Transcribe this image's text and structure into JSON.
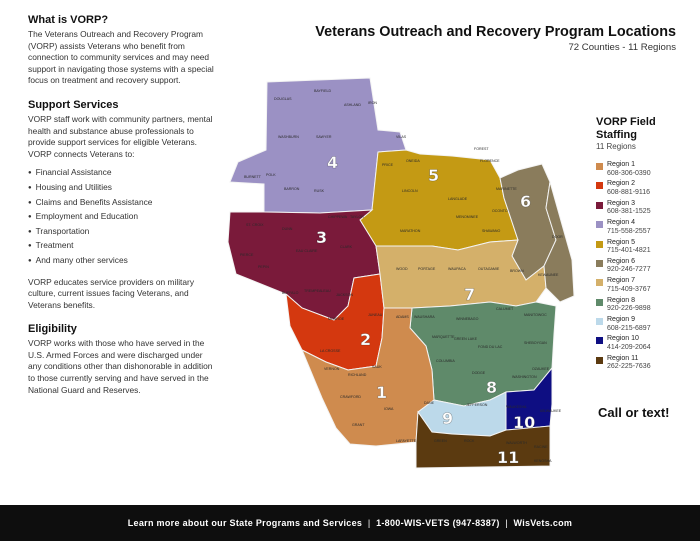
{
  "about": {
    "title": "What is VORP?",
    "text": "The Veterans Outreach and Recovery Program (VORP) assists Veterans who benefit from connection to community services and may need support in navigating those systems with a special focus on treatment and recovery support."
  },
  "support": {
    "title": "Support Services",
    "text": "VORP staff work with community partners, mental health and substance abuse professionals to provide support services for eligible Veterans. VORP connects Veterans to:",
    "items": [
      "Financial Assistance",
      "Housing and Utilities",
      "Claims and Benefits Assistance",
      "Employment and Education",
      "Transportation",
      "Treatment",
      "And many other services"
    ],
    "closing": "VORP educates service providers on military culture, current issues facing Veterans, and Veterans benefits."
  },
  "eligibility": {
    "title": "Eligibility",
    "text": "VORP works with those who have served in the U.S. Armed Forces and were discharged under any conditions other than dishonorable in addition to those currently serving and have served in the National Guard and Reserves."
  },
  "map": {
    "title": "Veterans Outreach and Recovery Program Locations",
    "subtitle": "72 Counties - 11 Regions",
    "region_labels": [
      "1",
      "2",
      "3",
      "4",
      "5",
      "6",
      "7",
      "8",
      "9",
      "10",
      "11"
    ],
    "county_labels": [
      "DOUGLAS",
      "BAYFIELD",
      "ASHLAND",
      "IRON",
      "VILAS",
      "FOREST",
      "FLORENCE",
      "MARINETTE",
      "OCONTO",
      "ONEIDA",
      "PRICE",
      "SAWYER",
      "WASHBURN",
      "BURNETT",
      "POLK",
      "BARRON",
      "RUSK",
      "LINCOLN",
      "LANGLADE",
      "MENOMINEE",
      "SHAWANO",
      "MARATHON",
      "TAYLOR",
      "CHIPPEWA",
      "ST. CROIX",
      "DUNN",
      "EAU CLAIRE",
      "CLARK",
      "PIERCE",
      "PEPIN",
      "BUFFALO",
      "TREMPEALEAU",
      "JACKSON",
      "WOOD",
      "PORTAGE",
      "WAUPACA",
      "OUTAGAMIE",
      "BROWN",
      "KEWAUNEE",
      "DOOR",
      "MONROE",
      "JUNEAU",
      "ADAMS",
      "WAUSHARA",
      "WINNEBAGO",
      "CALUMET",
      "MANITOWOC",
      "LA CROSSE",
      "VERNON",
      "RICHLAND",
      "SAUK",
      "MARQUETTE",
      "GREEN LAKE",
      "FOND DU LAC",
      "SHEBOYGAN",
      "COLUMBIA",
      "DODGE",
      "WASHINGTON",
      "OZAUKEE",
      "CRAWFORD",
      "GRANT",
      "IOWA",
      "DANE",
      "JEFFERSON",
      "WAUKESHA",
      "MILWAUKEE",
      "LAFAYETTE",
      "GREEN",
      "ROCK",
      "WALWORTH",
      "RACINE",
      "KENOSHA"
    ]
  },
  "legend": {
    "title": "VORP Field Staffing",
    "subtitle": "11 Regions",
    "regions": [
      {
        "label": "Region 1",
        "phone": "608-306-0390",
        "color": "#cf8b4e"
      },
      {
        "label": "Region 2",
        "phone": "608-881-9116",
        "color": "#d4380f"
      },
      {
        "label": "Region 3",
        "phone": "608-381-1525",
        "color": "#7a1a3a"
      },
      {
        "label": "Region 4",
        "phone": "715-558-2557",
        "color": "#9b91c4"
      },
      {
        "label": "Region 5",
        "phone": "715-401-4821",
        "color": "#c49a14"
      },
      {
        "label": "Region 6",
        "phone": "920-246-7277",
        "color": "#8a7c5c"
      },
      {
        "label": "Region 7",
        "phone": "715-409-3767",
        "color": "#d4b06a"
      },
      {
        "label": "Region 8",
        "phone": "920-226-9898",
        "color": "#5f8a6a"
      },
      {
        "label": "Region 9",
        "phone": "608-215-6897",
        "color": "#bcd9ea"
      },
      {
        "label": "Region 10",
        "phone": "414-209-2064",
        "color": "#0e0e82"
      },
      {
        "label": "Region 11",
        "phone": "262-225-7636",
        "color": "#5b3a10"
      }
    ]
  },
  "call": "Call or text!",
  "footer": {
    "lead": "Learn more about our State Programs and Services",
    "phone": "1-800-WIS-VETS (947-8387)",
    "site": "WisVets.com"
  }
}
